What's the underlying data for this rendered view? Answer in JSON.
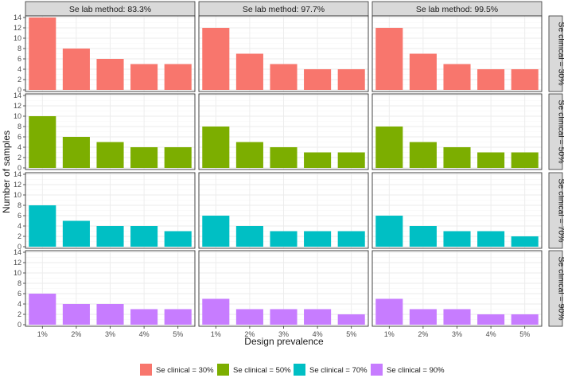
{
  "chart_data": {
    "type": "bar",
    "facet": "grid",
    "xlabel": "Design prevalence",
    "ylabel": "Number of samples",
    "ylim": [
      0,
      14
    ],
    "y_ticks": [
      "0",
      "2",
      "4",
      "6",
      "8",
      "10",
      "12",
      "14"
    ],
    "y_tick_values": [
      0,
      2,
      4,
      6,
      8,
      10,
      12,
      14
    ],
    "categories": [
      "1%",
      "2%",
      "3%",
      "4%",
      "5%"
    ],
    "col_facets": [
      "Se lab method: 83.3%",
      "Se lab method: 97.7%",
      "Se lab method: 99.5%"
    ],
    "row_facets": [
      "Se clinical = 30%",
      "Se clinical = 50%",
      "Se clinical = 70%",
      "Se clinical = 90%"
    ],
    "legend_position": "bottom",
    "series": [
      {
        "name": "Se clinical = 30%",
        "color": "#F8766D",
        "values": [
          [
            14,
            8,
            6,
            5,
            5
          ],
          [
            12,
            7,
            5,
            4,
            4
          ],
          [
            12,
            7,
            5,
            4,
            4
          ]
        ]
      },
      {
        "name": "Se clinical = 50%",
        "color": "#7CAE00",
        "values": [
          [
            10,
            6,
            5,
            4,
            4
          ],
          [
            8,
            5,
            4,
            3,
            3
          ],
          [
            8,
            5,
            4,
            3,
            3
          ]
        ]
      },
      {
        "name": "Se clinical = 70%",
        "color": "#00BFC4",
        "values": [
          [
            8,
            5,
            4,
            4,
            3
          ],
          [
            6,
            4,
            3,
            3,
            3
          ],
          [
            6,
            4,
            3,
            3,
            2
          ]
        ]
      },
      {
        "name": "Se clinical = 90%",
        "color": "#C77CFF",
        "values": [
          [
            6,
            4,
            4,
            3,
            3
          ],
          [
            5,
            3,
            3,
            3,
            2
          ],
          [
            5,
            3,
            3,
            2,
            2
          ]
        ]
      }
    ],
    "grid": true,
    "theme": {
      "panel_border": "#333333",
      "grid_major": "#EBEBEB",
      "grid_minor": "#F5F5F5",
      "strip_fill": "#D9D9D9",
      "text": "#4D4D4D",
      "title_text": "#1A1A1A"
    }
  }
}
